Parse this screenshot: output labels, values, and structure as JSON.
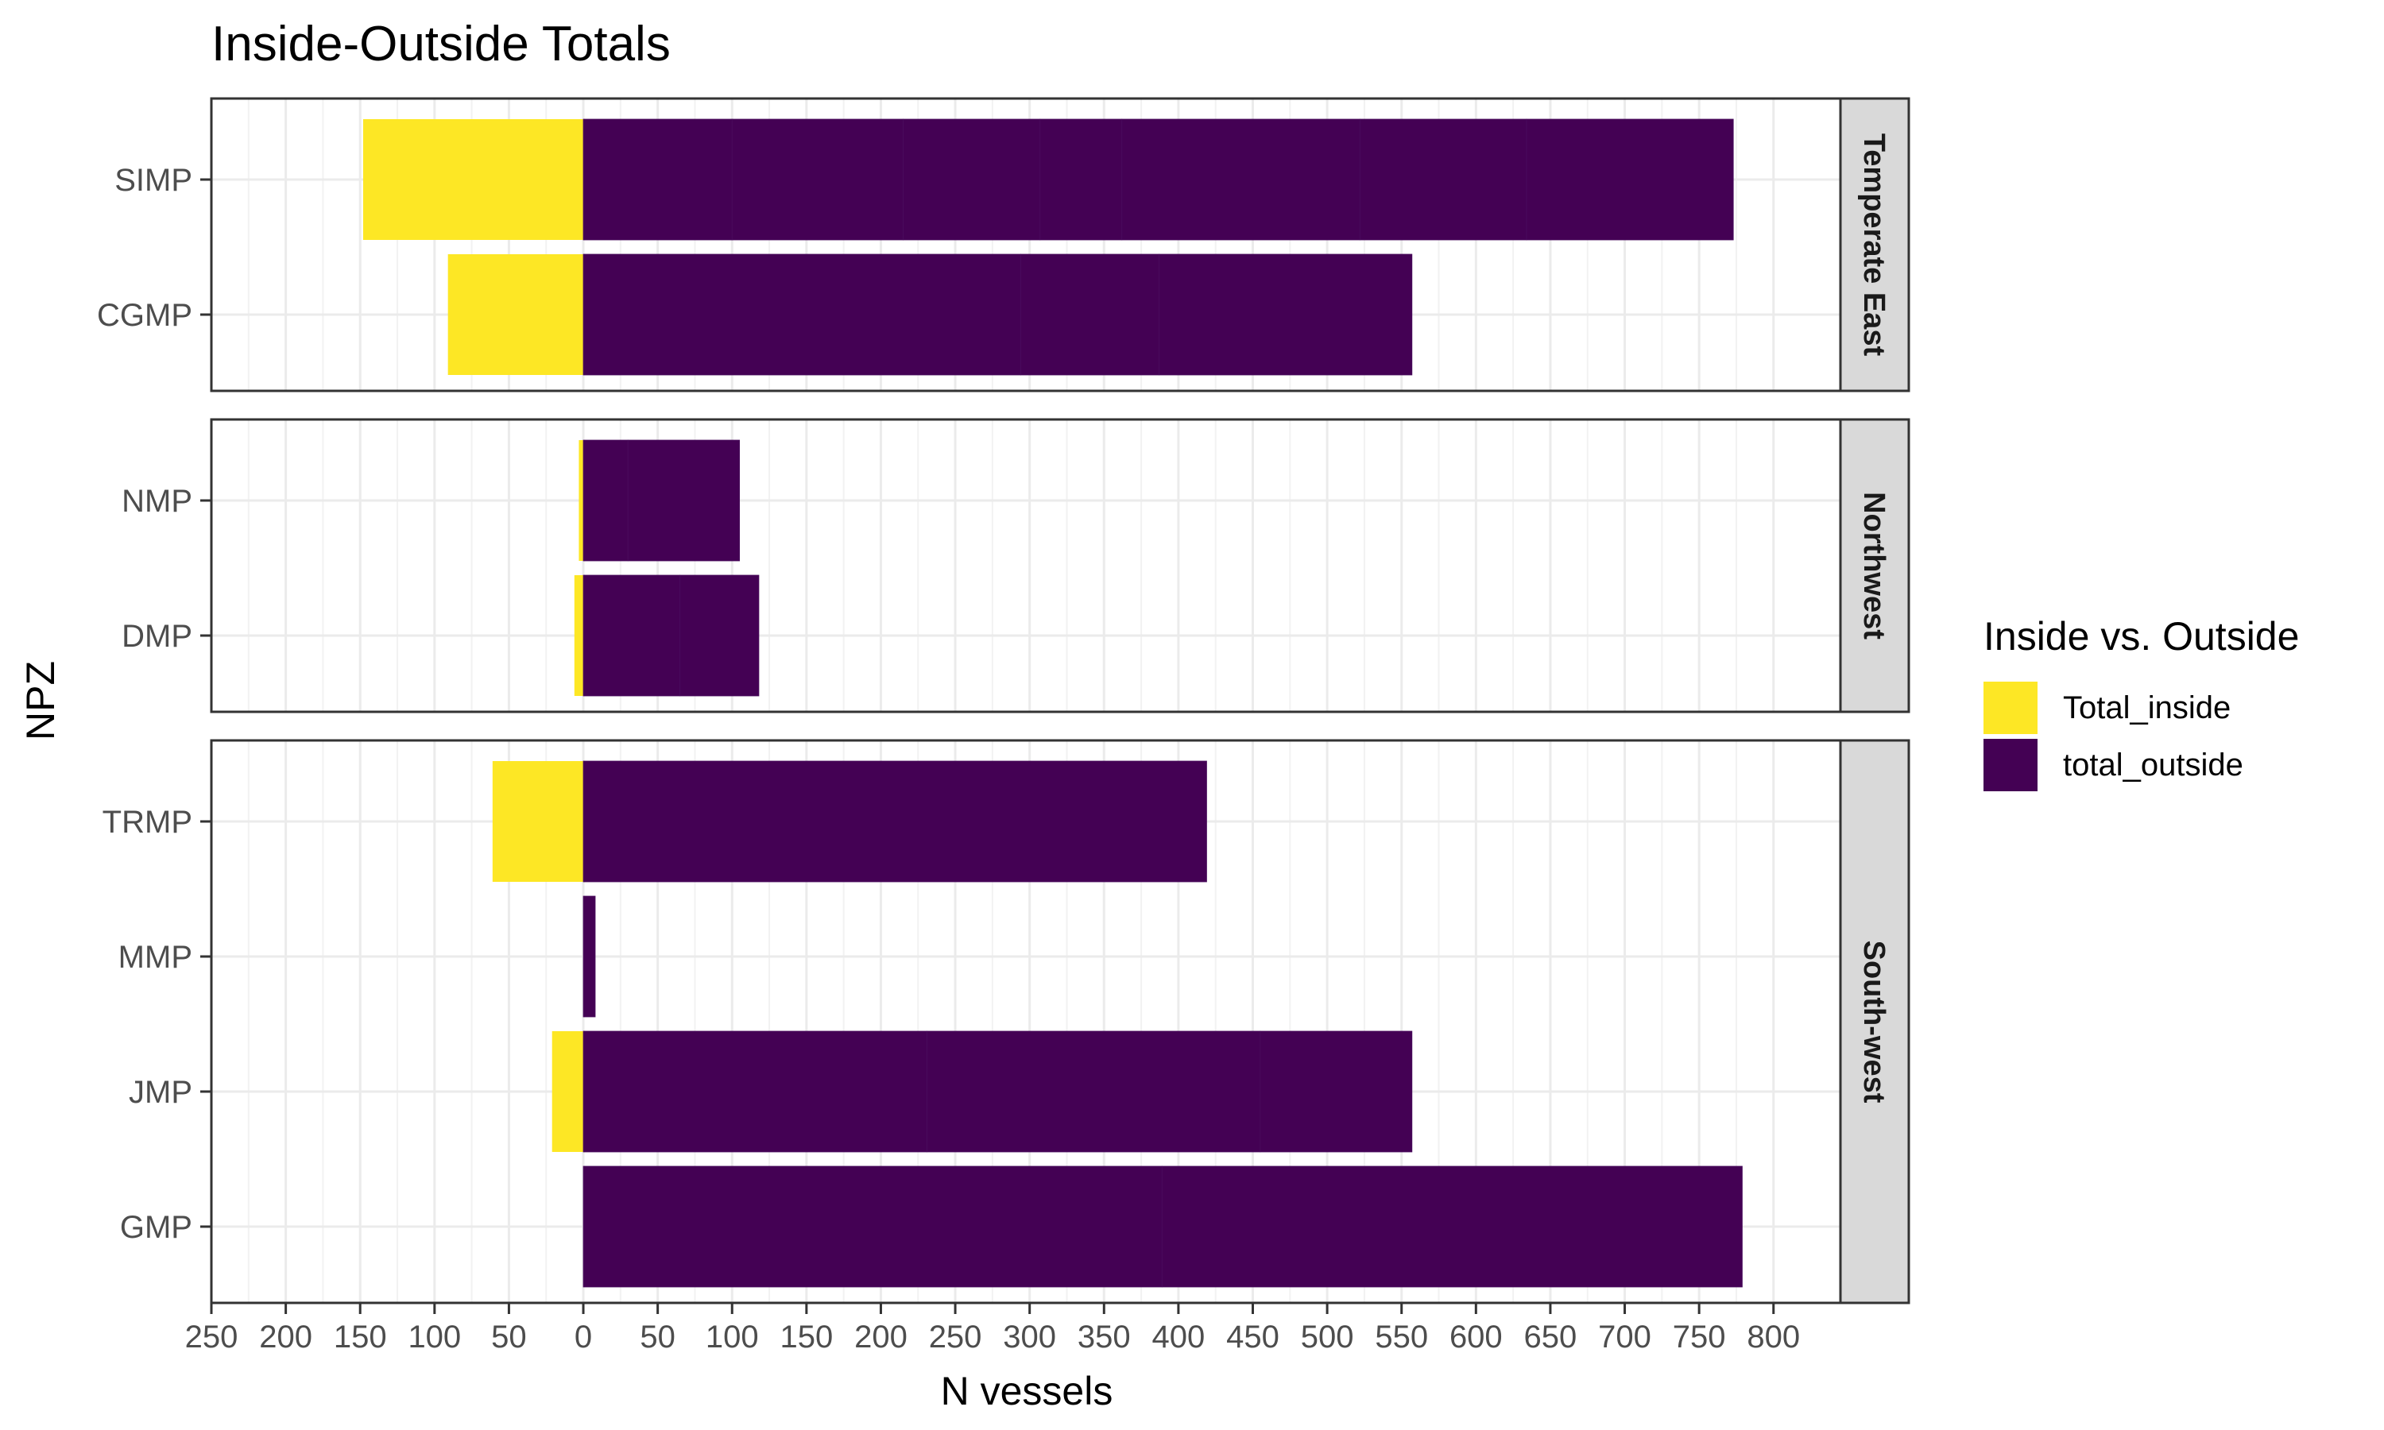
{
  "chart_data": {
    "type": "bar",
    "orientation": "horizontal",
    "title": "Inside-Outside Totals",
    "xlabel": "N vessels",
    "ylabel": "NPZ",
    "xlim": [
      -250,
      845
    ],
    "x_tick_values": [
      -250,
      -200,
      -150,
      -100,
      -50,
      0,
      50,
      100,
      150,
      200,
      250,
      300,
      350,
      400,
      450,
      500,
      550,
      600,
      650,
      700,
      750,
      800
    ],
    "x_tick_labels": [
      "250",
      "200",
      "150",
      "100",
      "50",
      "0",
      "50",
      "100",
      "150",
      "200",
      "250",
      "300",
      "350",
      "400",
      "450",
      "500",
      "550",
      "600",
      "650",
      "700",
      "750",
      "800"
    ],
    "grid": true,
    "legend": {
      "title": "Inside vs. Outside",
      "position": "right",
      "items": [
        {
          "label": "Total_inside",
          "color": "#FDE725"
        },
        {
          "label": "total_outside",
          "color": "#440154"
        }
      ]
    },
    "panels": [
      {
        "name": "Temperate East",
        "categories": [
          "SIMP",
          "CGMP"
        ],
        "series": [
          {
            "name": "Total_inside",
            "values": [
              -148,
              -91
            ]
          },
          {
            "name": "total_outside",
            "values": [
              773,
              557
            ]
          }
        ],
        "segments": {
          "total_outside": [
            [
              0,
              100,
              215,
              307,
              362,
              522,
              634,
              773
            ],
            [
              0,
              294,
              387,
              557
            ]
          ]
        }
      },
      {
        "name": "Northwest",
        "categories": [
          "NMP",
          "DMP"
        ],
        "series": [
          {
            "name": "Total_inside",
            "values": [
              -3,
              -6
            ]
          },
          {
            "name": "total_outside",
            "values": [
              105,
              118
            ]
          }
        ],
        "segments": {
          "total_outside": [
            [
              0,
              30,
              105
            ],
            [
              0,
              65,
              118
            ]
          ]
        }
      },
      {
        "name": "South-west",
        "categories": [
          "TRMP",
          "MMP",
          "JMP",
          "GMP"
        ],
        "series": [
          {
            "name": "Total_inside",
            "values": [
              -61,
              0,
              -21,
              0
            ]
          },
          {
            "name": "total_outside",
            "values": [
              419,
              8,
              557,
              779
            ]
          }
        ],
        "segments": {
          "total_outside": [
            [
              0,
              419
            ],
            [
              0,
              8
            ],
            [
              0,
              231,
              455,
              557
            ],
            [
              0,
              389,
              779
            ]
          ]
        }
      }
    ]
  }
}
